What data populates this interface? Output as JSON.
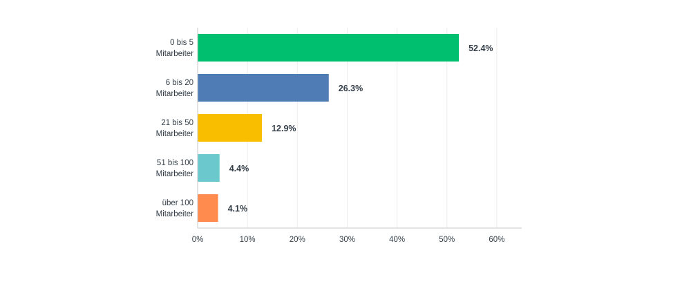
{
  "chart_data": {
    "type": "bar",
    "orientation": "horizontal",
    "categories": [
      [
        "0 bis 5",
        "Mitarbeiter"
      ],
      [
        "6 bis 20",
        "Mitarbeiter"
      ],
      [
        "21 bis 50",
        "Mitarbeiter"
      ],
      [
        "51 bis 100",
        "Mitarbeiter"
      ],
      [
        "über 100",
        "Mitarbeiter"
      ]
    ],
    "values": [
      52.4,
      26.3,
      12.9,
      4.4,
      4.1
    ],
    "value_labels": [
      "52.4%",
      "26.3%",
      "12.9%",
      "4.4%",
      "4.1%"
    ],
    "colors": [
      "#00bf6f",
      "#507cb6",
      "#f9be00",
      "#6bc8cd",
      "#ff8b4f"
    ],
    "xlim": [
      0,
      65
    ],
    "x_ticks": [
      0,
      10,
      20,
      30,
      40,
      50,
      60
    ],
    "x_tick_labels": [
      "0%",
      "10%",
      "20%",
      "30%",
      "40%",
      "50%",
      "60%"
    ],
    "grid": "vertical",
    "title": "",
    "xlabel": "",
    "ylabel": ""
  }
}
